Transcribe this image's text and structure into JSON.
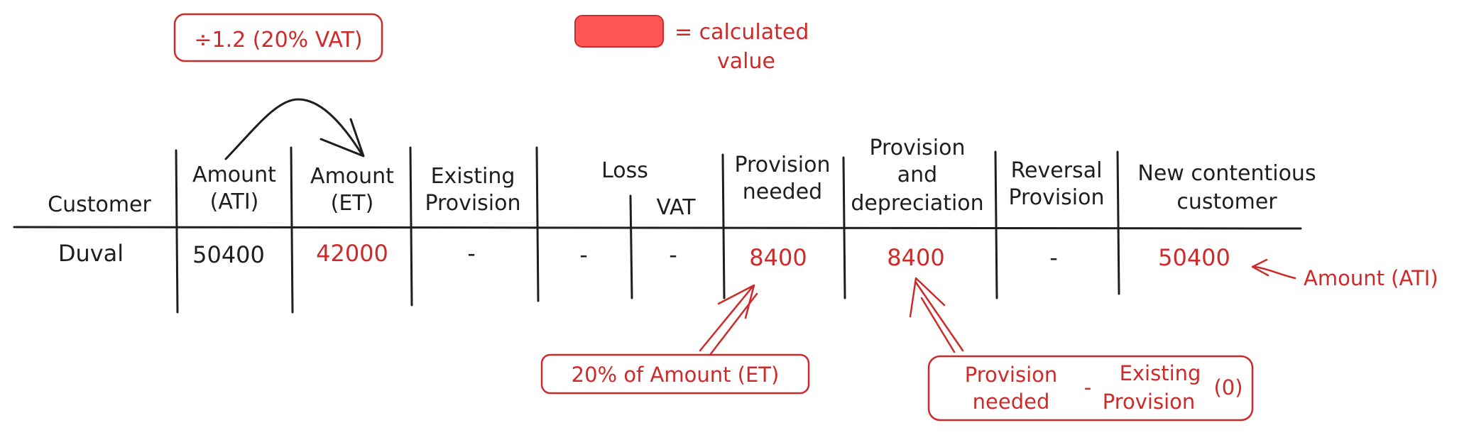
{
  "legend": {
    "swatch_color": "#ff5555",
    "text_line1": "= calculated",
    "text_line2": "value"
  },
  "table": {
    "headers": {
      "customer": "Customer",
      "amount_ati": [
        "Amount",
        "(ATI)"
      ],
      "amount_et": [
        "Amount",
        "(ET)"
      ],
      "existing_provision": [
        "Existing",
        "Provision"
      ],
      "loss": "Loss",
      "vat": "VAT",
      "provision_needed": [
        "Provision",
        "needed"
      ],
      "provision_and_depreciation": [
        "Provision",
        "and",
        "depreciation"
      ],
      "reversal_provision": [
        "Reversal",
        "Provision"
      ],
      "new_contentious_customer": [
        "New contentious",
        "customer"
      ]
    },
    "row": {
      "customer": "Duval",
      "amount_ati": "50400",
      "amount_et": "42000",
      "existing_provision": "-",
      "loss": "-",
      "vat": "-",
      "provision_needed": "8400",
      "provision_and_depreciation": "8400",
      "reversal_provision": "-",
      "new_contentious_customer": "50400"
    }
  },
  "annotations": {
    "vat_division": "÷1.2 (20% VAT)",
    "provision_formula": "20% of Amount (ET)",
    "depreciation_formula": {
      "left": [
        "Provision",
        "needed"
      ],
      "operator": "-",
      "right": [
        "Existing",
        "Provision"
      ],
      "suffix": "(0)"
    },
    "new_customer_note": "Amount (ATI)"
  },
  "colors": {
    "ink": "#1e1e1e",
    "calculated": "#cf2a2a"
  }
}
